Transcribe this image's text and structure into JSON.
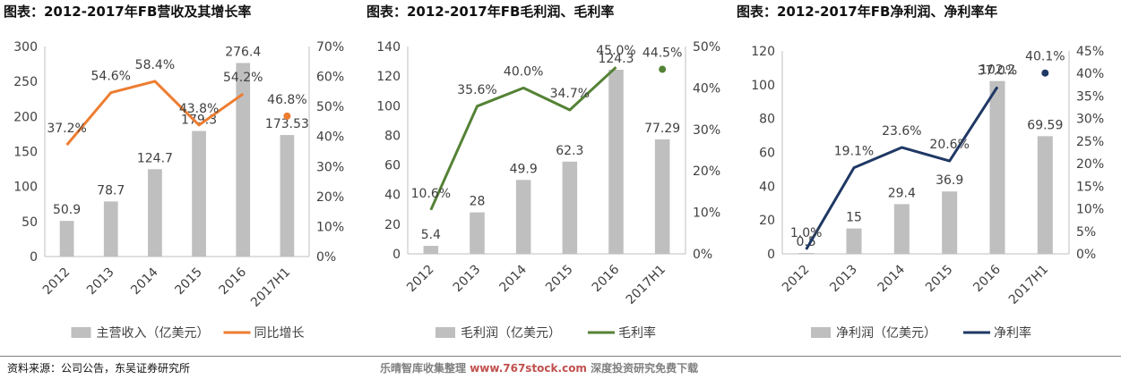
{
  "source": "资料来源：公司公告，东吴证券研究所",
  "watermark": {
    "prefix": "乐晴智库收集整理",
    "url": "www.767stock.com",
    "suffix": "深度投资研究免费下载"
  },
  "chart_data": [
    {
      "type": "bar",
      "title": "图表：2012-2017年FB营收及其增长率",
      "categories": [
        "2012",
        "2013",
        "2014",
        "2015",
        "2016",
        "2017H1"
      ],
      "series": [
        {
          "name": "主营收入（亿美元）",
          "type": "bar",
          "axis": "left",
          "values": [
            50.9,
            78.7,
            124.7,
            179.3,
            276.4,
            173.53
          ],
          "labels": [
            "50.9",
            "78.7",
            "124.7",
            "179.3",
            "276.4",
            "173.53"
          ],
          "color": "#bfbfbf"
        },
        {
          "name": "同比增长",
          "type": "line",
          "axis": "right",
          "values": [
            37.2,
            54.6,
            58.4,
            43.8,
            54.2,
            46.8
          ],
          "labels": [
            "37.2%",
            "54.6%",
            "58.4%",
            "43.8%",
            "54.2%",
            "46.8%"
          ],
          "color": "#ed7d31",
          "last_point_separate": true
        }
      ],
      "left_axis": {
        "min": 0,
        "max": 300,
        "step": 50,
        "ticks": [
          "0",
          "50",
          "100",
          "150",
          "200",
          "250",
          "300"
        ]
      },
      "right_axis": {
        "min": 0,
        "max": 70,
        "step": 10,
        "ticks": [
          "0%",
          "10%",
          "20%",
          "30%",
          "40%",
          "50%",
          "60%",
          "70%"
        ]
      },
      "legend_position": "bottom"
    },
    {
      "type": "bar",
      "title": "图表：2012-2017年FB毛利润、毛利率",
      "categories": [
        "2012",
        "2013",
        "2014",
        "2015",
        "2016",
        "2017H1"
      ],
      "series": [
        {
          "name": "毛利润（亿美元）",
          "type": "bar",
          "axis": "left",
          "values": [
            5.4,
            28,
            49.9,
            62.3,
            124.3,
            77.29
          ],
          "labels": [
            "5.4",
            "28",
            "49.9",
            "62.3",
            "124.3",
            "77.29"
          ],
          "color": "#bfbfbf"
        },
        {
          "name": "毛利率",
          "type": "line",
          "axis": "right",
          "values": [
            10.6,
            35.6,
            40.0,
            34.7,
            45.0,
            44.5
          ],
          "labels": [
            "10.6%",
            "35.6%",
            "40.0%",
            "34.7%",
            "45.0%",
            "44.5%"
          ],
          "color": "#548235",
          "last_point_separate": true
        }
      ],
      "left_axis": {
        "min": 0,
        "max": 140,
        "step": 20,
        "ticks": [
          "0",
          "20",
          "40",
          "60",
          "80",
          "100",
          "120",
          "140"
        ]
      },
      "right_axis": {
        "min": 0,
        "max": 50,
        "step": 10,
        "ticks": [
          "0%",
          "10%",
          "20%",
          "30%",
          "40%",
          "50%"
        ]
      },
      "legend_position": "bottom"
    },
    {
      "type": "bar",
      "title": "图表：2012-2017年FB净利润、净利率年",
      "categories": [
        "2012",
        "2013",
        "2014",
        "2015",
        "2016",
        "2017H1"
      ],
      "series": [
        {
          "name": "净利润（亿美元）",
          "type": "bar",
          "axis": "left",
          "values": [
            0.5,
            15,
            29.4,
            36.9,
            102.2,
            69.59
          ],
          "labels": [
            "0.5",
            "15",
            "29.4",
            "36.9",
            "102.2",
            "69.59"
          ],
          "color": "#bfbfbf"
        },
        {
          "name": "净利率",
          "type": "line",
          "axis": "right",
          "values": [
            1.0,
            19.1,
            23.6,
            20.6,
            37.0,
            40.1
          ],
          "labels": [
            "1.0%",
            "19.1%",
            "23.6%",
            "20.6%",
            "37.0%",
            "40.1%"
          ],
          "color": "#1f3864",
          "last_point_separate": true
        }
      ],
      "left_axis": {
        "min": 0,
        "max": 120,
        "step": 20,
        "ticks": [
          "0",
          "20",
          "40",
          "60",
          "80",
          "100",
          "120"
        ]
      },
      "right_axis": {
        "min": 0,
        "max": 45,
        "step": 5,
        "ticks": [
          "0%",
          "5%",
          "10%",
          "15%",
          "20%",
          "25%",
          "30%",
          "35%",
          "40%",
          "45%"
        ]
      },
      "legend_position": "bottom"
    }
  ]
}
